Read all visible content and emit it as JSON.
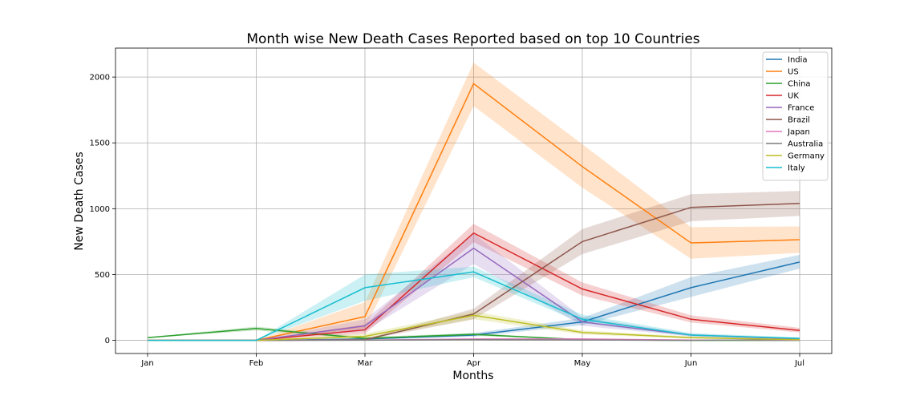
{
  "chart_data": {
    "type": "line",
    "title": "Month wise New Death Cases Reported based on top 10 Countries",
    "xlabel": "Months",
    "ylabel": "New Death Cases",
    "categories": [
      "Jan",
      "Feb",
      "Mar",
      "Apr",
      "May",
      "Jun",
      "Jul"
    ],
    "ylim": [
      -100,
      2220
    ],
    "yticks": [
      0,
      500,
      1000,
      1500,
      2000
    ],
    "grid": true,
    "legend_position": "top-right",
    "series": [
      {
        "name": "India",
        "color": "#1f77b4",
        "values": [
          0,
          0,
          10,
          40,
          140,
          400,
          595
        ],
        "band": [
          [
            0,
            0
          ],
          [
            0,
            0
          ],
          [
            5,
            15
          ],
          [
            28,
            55
          ],
          [
            115,
            170
          ],
          [
            330,
            480
          ],
          [
            545,
            650
          ]
        ]
      },
      {
        "name": "US",
        "color": "#ff7f0e",
        "values": [
          0,
          0,
          180,
          1950,
          1320,
          740,
          765
        ],
        "band": [
          [
            0,
            0
          ],
          [
            0,
            0
          ],
          [
            90,
            290
          ],
          [
            1780,
            2110
          ],
          [
            1160,
            1490
          ],
          [
            620,
            860
          ],
          [
            665,
            865
          ]
        ]
      },
      {
        "name": "China",
        "color": "#2ca02c",
        "values": [
          20,
          90,
          15,
          45,
          5,
          0,
          0
        ],
        "band": [
          [
            17,
            24
          ],
          [
            75,
            105
          ],
          [
            8,
            25
          ],
          [
            35,
            55
          ],
          [
            2,
            8
          ],
          [
            0,
            1
          ],
          [
            0,
            1
          ]
        ]
      },
      {
        "name": "UK",
        "color": "#d62728",
        "values": [
          0,
          0,
          80,
          815,
          390,
          160,
          75
        ],
        "band": [
          [
            0,
            0
          ],
          [
            0,
            0
          ],
          [
            50,
            120
          ],
          [
            745,
            885
          ],
          [
            340,
            440
          ],
          [
            135,
            190
          ],
          [
            60,
            95
          ]
        ]
      },
      {
        "name": "France",
        "color": "#9467bd",
        "values": [
          0,
          0,
          110,
          700,
          140,
          40,
          10
        ],
        "band": [
          [
            0,
            0
          ],
          [
            0,
            0
          ],
          [
            70,
            160
          ],
          [
            580,
            810
          ],
          [
            110,
            175
          ],
          [
            30,
            50
          ],
          [
            5,
            15
          ]
        ]
      },
      {
        "name": "Brazil",
        "color": "#8c564b",
        "values": [
          0,
          0,
          5,
          200,
          750,
          1010,
          1040
        ],
        "band": [
          [
            0,
            0
          ],
          [
            0,
            0
          ],
          [
            2,
            10
          ],
          [
            160,
            240
          ],
          [
            655,
            845
          ],
          [
            905,
            1110
          ],
          [
            945,
            1135
          ]
        ]
      },
      {
        "name": "Japan",
        "color": "#e377c2",
        "values": [
          0,
          0,
          2,
          10,
          10,
          2,
          1
        ],
        "band": [
          [
            0,
            0
          ],
          [
            0,
            0
          ],
          [
            1,
            4
          ],
          [
            7,
            14
          ],
          [
            6,
            14
          ],
          [
            1,
            4
          ],
          [
            0,
            2
          ]
        ]
      },
      {
        "name": "Australia",
        "color": "#7f7f7f",
        "values": [
          0,
          0,
          1,
          5,
          3,
          0,
          5
        ],
        "band": [
          [
            0,
            0
          ],
          [
            0,
            0
          ],
          [
            0,
            2
          ],
          [
            3,
            8
          ],
          [
            1,
            5
          ],
          [
            0,
            1
          ],
          [
            3,
            8
          ]
        ]
      },
      {
        "name": "Germany",
        "color": "#bcbd22",
        "values": [
          0,
          0,
          30,
          190,
          60,
          20,
          5
        ],
        "band": [
          [
            0,
            0
          ],
          [
            0,
            0
          ],
          [
            15,
            50
          ],
          [
            160,
            220
          ],
          [
            45,
            75
          ],
          [
            12,
            30
          ],
          [
            3,
            8
          ]
        ]
      },
      {
        "name": "Italy",
        "color": "#17becf",
        "values": [
          0,
          0,
          400,
          520,
          160,
          40,
          15
        ],
        "band": [
          [
            0,
            0
          ],
          [
            0,
            0
          ],
          [
            300,
            500
          ],
          [
            480,
            560
          ],
          [
            130,
            195
          ],
          [
            30,
            55
          ],
          [
            10,
            22
          ]
        ]
      }
    ]
  }
}
